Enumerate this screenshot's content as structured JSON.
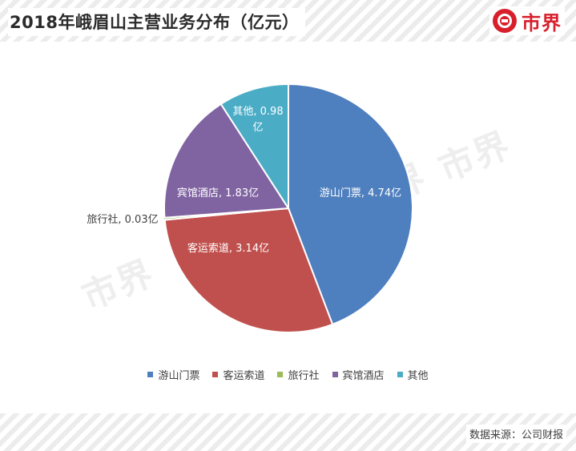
{
  "header": {
    "title": "2018年峨眉山主营业务分布（亿元）",
    "brand": "市界"
  },
  "footer": {
    "source": "数据来源：公司财报"
  },
  "watermark": "市界",
  "chart_data": {
    "type": "pie",
    "title": "2018年峨眉山主营业务分布（亿元）",
    "unit": "亿元",
    "legend_position": "bottom",
    "slices": [
      {
        "name": "游山门票",
        "value": 4.74,
        "label": "游山门票, 4.74亿",
        "color": "#4e7fbe"
      },
      {
        "name": "客运索道",
        "value": 3.14,
        "label": "客运索道, 3.14亿",
        "color": "#c0504d"
      },
      {
        "name": "旅行社",
        "value": 0.03,
        "label": "旅行社, 0.03亿",
        "color": "#9bbb59"
      },
      {
        "name": "宾馆酒店",
        "value": 1.83,
        "label": "宾馆酒店, 1.83亿",
        "color": "#8064a2"
      },
      {
        "name": "其他",
        "value": 0.98,
        "label": "其他, 0.98亿",
        "color": "#4bacc6"
      }
    ]
  }
}
